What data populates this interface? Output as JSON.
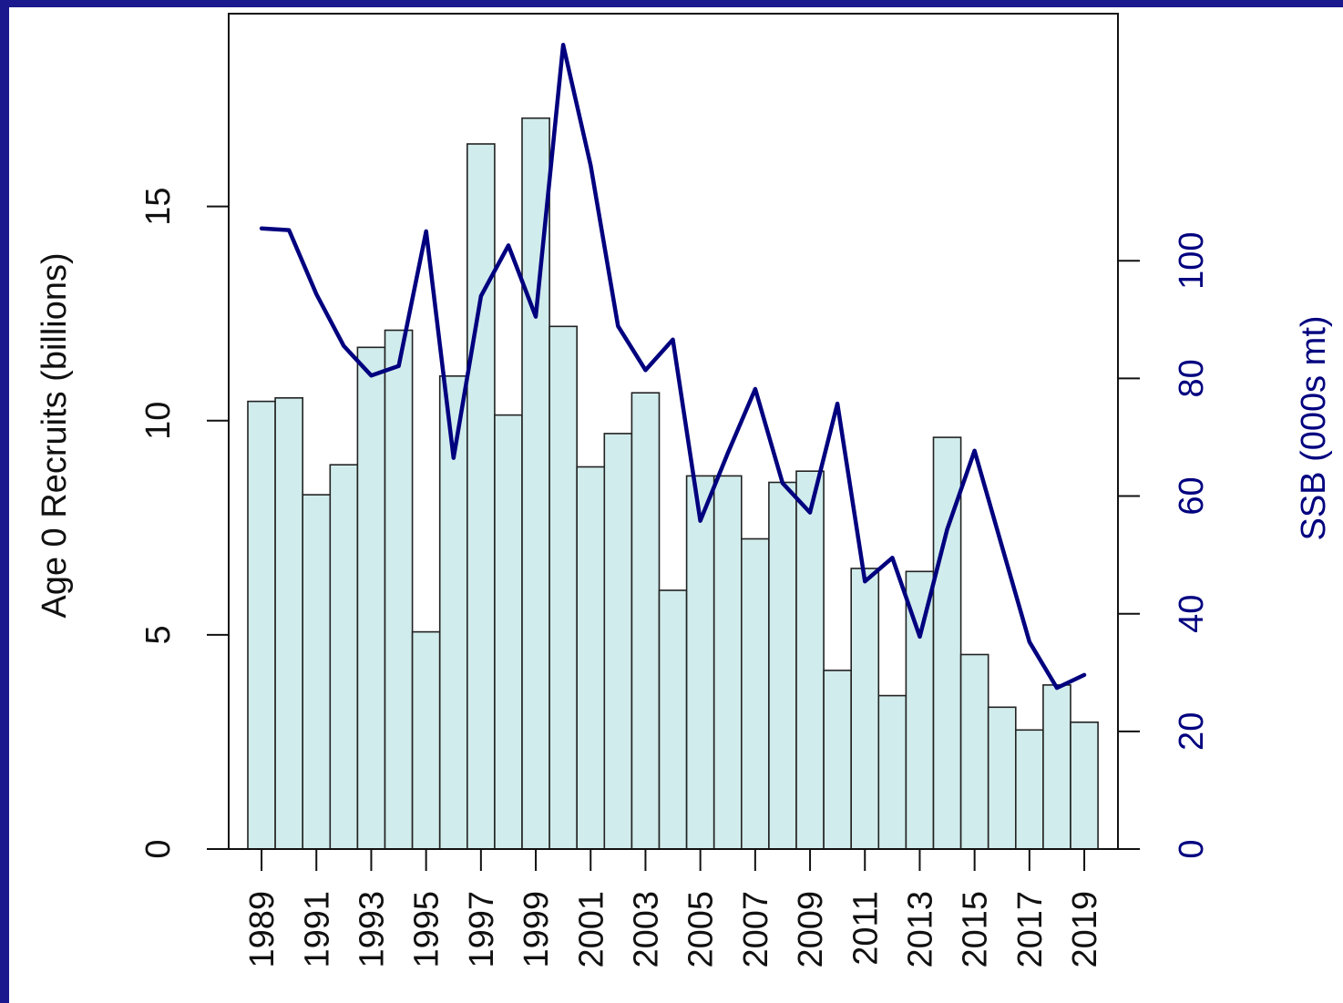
{
  "chart_data": {
    "type": "bar",
    "categories": [
      "1989",
      "1990",
      "1991",
      "1992",
      "1993",
      "1994",
      "1995",
      "1996",
      "1997",
      "1998",
      "1999",
      "2000",
      "2001",
      "2002",
      "2003",
      "2004",
      "2005",
      "2006",
      "2007",
      "2008",
      "2009",
      "2010",
      "2011",
      "2012",
      "2013",
      "2014",
      "2015",
      "2016",
      "2017",
      "2018",
      "2019"
    ],
    "x_tick_labels": [
      "1989",
      "1991",
      "1993",
      "1995",
      "1997",
      "1999",
      "2001",
      "2003",
      "2005",
      "2007",
      "2009",
      "2011",
      "2013",
      "2015",
      "2017",
      "2019"
    ],
    "series": [
      {
        "type": "bar",
        "axis": "left",
        "values": [
          10.45,
          10.53,
          8.27,
          8.97,
          11.71,
          12.11,
          5.07,
          11.04,
          16.46,
          10.13,
          17.06,
          12.2,
          8.92,
          9.7,
          10.65,
          6.04,
          8.71,
          8.71,
          7.24,
          8.56,
          8.82,
          4.17,
          6.55,
          3.58,
          6.48,
          9.61,
          4.54,
          3.31,
          2.78,
          3.83,
          2.96
        ]
      },
      {
        "type": "line",
        "axis": "right",
        "values": [
          105.5,
          105.2,
          94.3,
          85.5,
          80.5,
          82.1,
          105.0,
          66.5,
          94.0,
          102.6,
          90.5,
          136.7,
          116.2,
          88.9,
          81.4,
          86.6,
          55.8,
          67.3,
          78.2,
          62.2,
          57.2,
          75.7,
          45.5,
          49.5,
          36.1,
          54.3,
          67.7,
          51.4,
          35.2,
          27.4,
          29.6
        ]
      }
    ],
    "ylabel_left": "Age 0 Recruits (billions)",
    "ylabel_right": "SSB (000s mt)",
    "ylim_left": [
      0,
      19.5
    ],
    "ylim_right": [
      0,
      142
    ],
    "yticks_left": [
      "0",
      "5",
      "10",
      "15"
    ],
    "yticks_right": [
      "0",
      "20",
      "40",
      "60",
      "80",
      "100"
    ],
    "grid": false,
    "colors": {
      "frame": "#1a1a8e",
      "bar_fill": "#d1ecec",
      "bar_stroke": "#222222",
      "line": "#00007f",
      "right_axis_text": "#00007f"
    }
  }
}
